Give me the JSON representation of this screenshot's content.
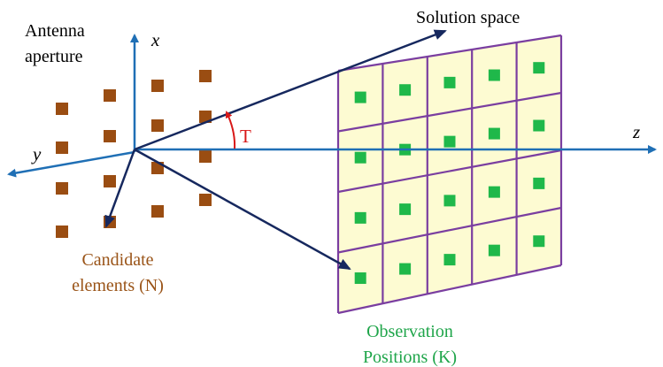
{
  "labels": {
    "antenna_line1": "Antenna",
    "antenna_line2": "aperture",
    "axis_x": "x",
    "axis_y": "y",
    "axis_z": "z",
    "angle": "T",
    "solution_space": "Solution space",
    "candidate_line1": "Candidate",
    "candidate_line2": "elements (N)",
    "observation_line1": "Observation",
    "observation_line2": "Positions (K)"
  },
  "grid": {
    "rows": 4,
    "cols": 5
  },
  "colors": {
    "axis": "#1f6fb5",
    "ray": "#16285e",
    "element": "#9a4d12",
    "grid_fill": "#fdfbd2",
    "grid_line": "#7a3ea0",
    "observation_square": "#1fb84a",
    "angle": "#d81818",
    "candidate_text": "#9a5418",
    "observation_text": "#1fa54a",
    "text": "#000000"
  }
}
